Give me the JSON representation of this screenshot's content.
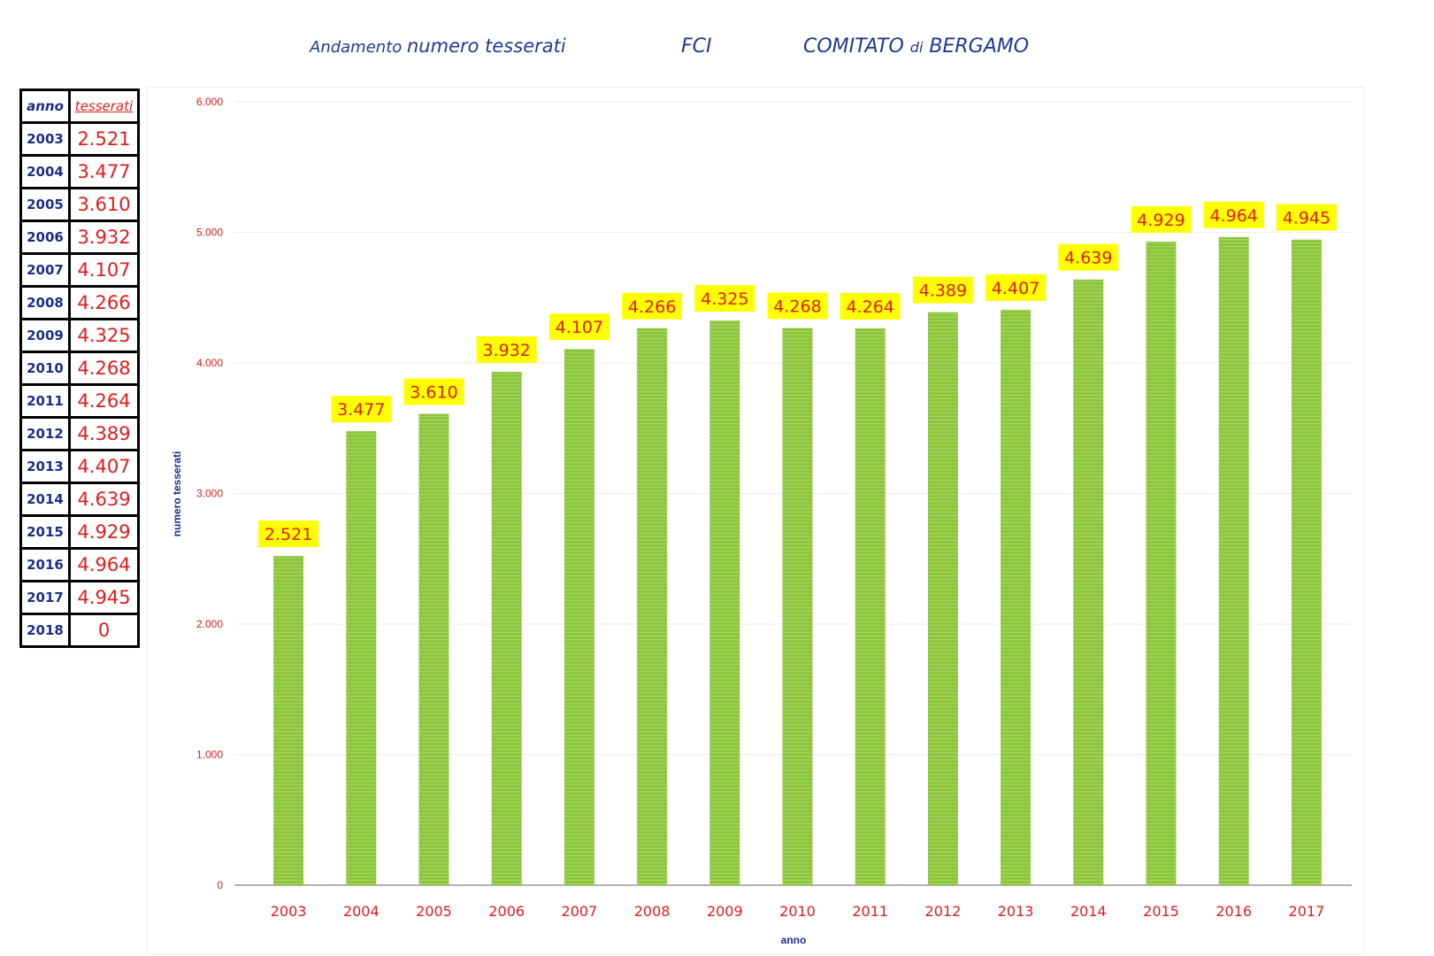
{
  "header": {
    "title_part1": "Andamento",
    "title_part2": "numero tesserati",
    "org": "FCI",
    "committee_part1": "COMITATO",
    "committee_part2": "di",
    "committee_part3": "BERGAMO"
  },
  "table": {
    "headers": [
      "anno",
      "tesserati"
    ],
    "rows": [
      [
        "2003",
        "2.521"
      ],
      [
        "2004",
        "3.477"
      ],
      [
        "2005",
        "3.610"
      ],
      [
        "2006",
        "3.932"
      ],
      [
        "2007",
        "4.107"
      ],
      [
        "2008",
        "4.266"
      ],
      [
        "2009",
        "4.325"
      ],
      [
        "2010",
        "4.268"
      ],
      [
        "2011",
        "4.264"
      ],
      [
        "2012",
        "4.389"
      ],
      [
        "2013",
        "4.407"
      ],
      [
        "2014",
        "4.639"
      ],
      [
        "2015",
        "4.929"
      ],
      [
        "2016",
        "4.964"
      ],
      [
        "2017",
        "4.945"
      ],
      [
        "2018",
        "0"
      ]
    ]
  },
  "colors": {
    "bar": "#8cc63f",
    "label_bg": "#ffff00",
    "label_text": "#e31b1b",
    "axis_label": "#1a2f8a",
    "tick_text": "#e31b1b"
  },
  "chart_data": {
    "type": "bar",
    "title": "Andamento numero tesserati FCI COMITATO di BERGAMO",
    "xlabel": "anno",
    "ylabel": "numero tesserati",
    "categories": [
      "2003",
      "2004",
      "2005",
      "2006",
      "2007",
      "2008",
      "2009",
      "2010",
      "2011",
      "2012",
      "2013",
      "2014",
      "2015",
      "2016",
      "2017"
    ],
    "values": [
      2521,
      3477,
      3610,
      3932,
      4107,
      4266,
      4325,
      4268,
      4264,
      4389,
      4407,
      4639,
      4929,
      4964,
      4945
    ],
    "data_labels": [
      "2.521",
      "3.477",
      "3.610",
      "3.932",
      "4.107",
      "4.266",
      "4.325",
      "4.268",
      "4.264",
      "4.389",
      "4.407",
      "4.639",
      "4.929",
      "4.964",
      "4.945"
    ],
    "ylim": [
      0,
      6000
    ],
    "yticks": [
      0,
      1000,
      2000,
      3000,
      4000,
      5000,
      6000
    ],
    "ytick_labels": [
      "0",
      "1.000",
      "2.000",
      "3.000",
      "4.000",
      "5.000",
      "6.000"
    ],
    "grid": true,
    "legend": "none"
  }
}
